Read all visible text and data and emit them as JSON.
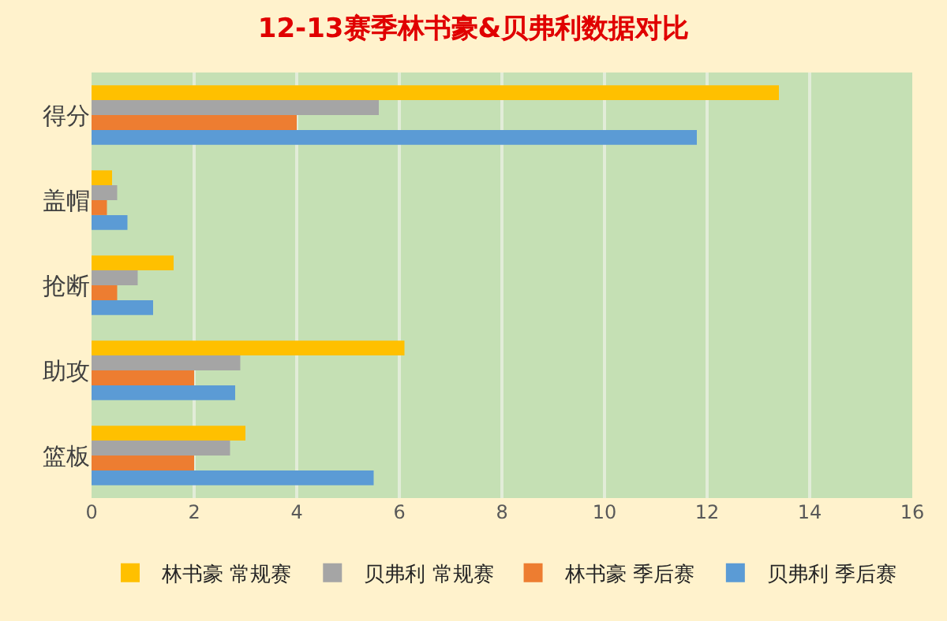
{
  "chart_data": {
    "type": "bar",
    "orientation": "horizontal",
    "title": "12-13赛季林书豪&贝弗利数据对比",
    "categories": [
      "得分",
      "盖帽",
      "抢断",
      "助攻",
      "篮板"
    ],
    "series": [
      {
        "name": "林书豪 常规赛",
        "color": "#ffc000",
        "values": [
          13.4,
          0.4,
          1.6,
          6.1,
          3.0
        ]
      },
      {
        "name": "贝弗利 常规赛",
        "color": "#a5a5a5",
        "values": [
          5.6,
          0.5,
          0.9,
          2.9,
          2.7
        ]
      },
      {
        "name": "林书豪 季后赛",
        "color": "#ed7d31",
        "values": [
          4.0,
          0.3,
          0.5,
          2.0,
          2.0
        ]
      },
      {
        "name": "贝弗利 季后赛",
        "color": "#5b9bd5",
        "values": [
          11.8,
          0.7,
          1.2,
          2.8,
          5.5
        ]
      }
    ],
    "xlim": [
      0,
      16
    ],
    "xticks": [
      0,
      2,
      4,
      6,
      8,
      10,
      12,
      14,
      16
    ],
    "grid": "x",
    "legend": "bottom"
  }
}
